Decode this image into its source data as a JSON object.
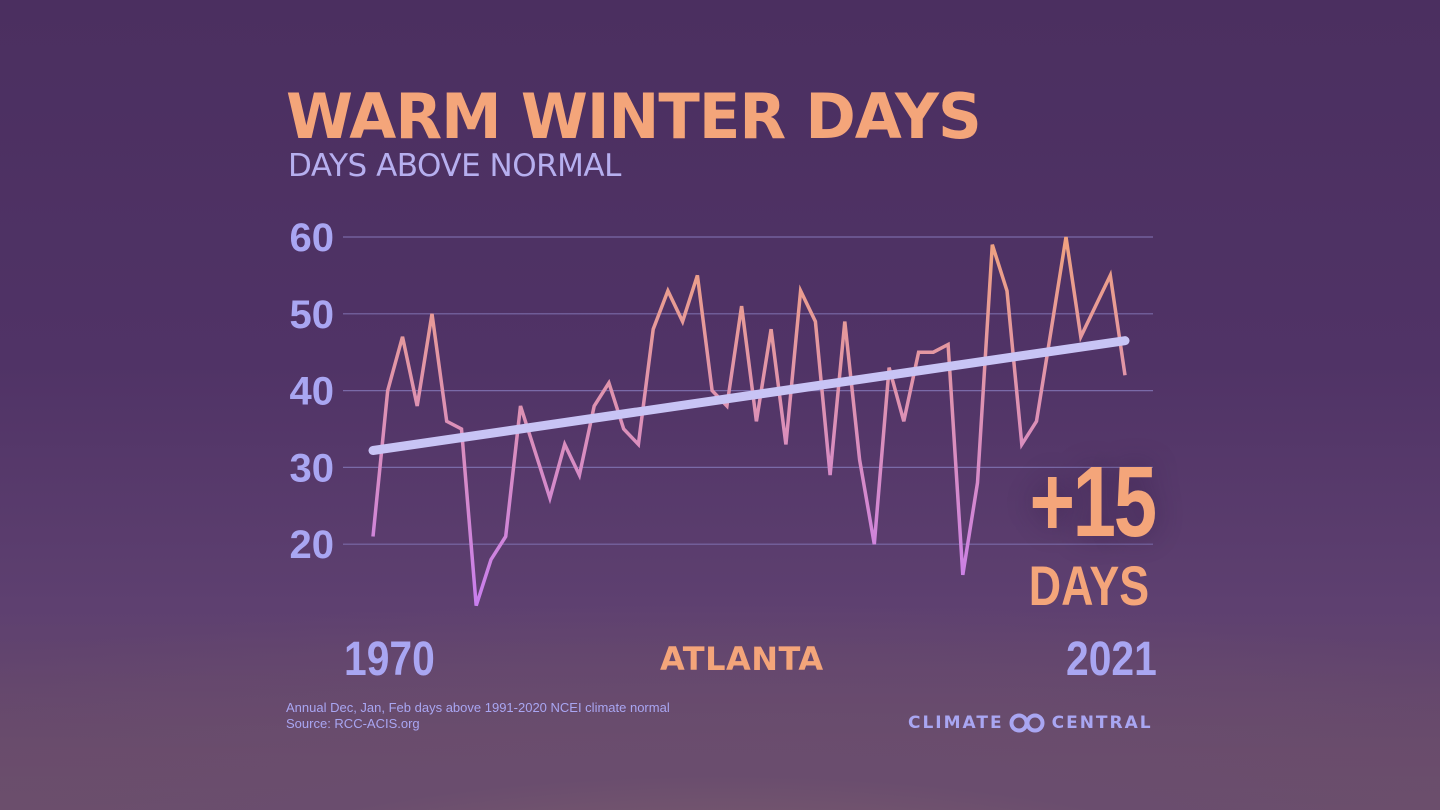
{
  "header": {
    "title": "WARM WINTER DAYS",
    "subtitle": "DAYS ABOVE NORMAL"
  },
  "callout": {
    "change": "+15",
    "unit": "DAYS"
  },
  "labels": {
    "start_year": "1970",
    "end_year": "2021",
    "city": "ATLANTA"
  },
  "footnote": {
    "line1": "Annual Dec, Jan, Feb days above 1991-2020 NCEI climate normal",
    "line2": "Source: RCC-ACIS.org"
  },
  "logo": {
    "left": "CLIMATE",
    "right": "CENTRAL",
    "icon": "linked-rings-icon"
  },
  "colors": {
    "accent": "#f4a57a",
    "label": "#a9a6f2",
    "trend": "#c8c4f5",
    "line_high": "#f0a27f",
    "line_low": "#c87ef0",
    "grid": "#7a6aa8"
  },
  "chart_data": {
    "type": "line",
    "title": "WARM WINTER DAYS",
    "ylabel": "DAYS ABOVE NORMAL",
    "x_start": 1970,
    "x_end": 2021,
    "ylim": [
      10,
      60
    ],
    "yticks": [
      20,
      30,
      40,
      50,
      60
    ],
    "grid": true,
    "series": [
      {
        "x": [
          1970,
          1971,
          1972,
          1973,
          1974,
          1975,
          1976,
          1977,
          1978,
          1979,
          1980,
          1981,
          1982,
          1983,
          1984,
          1985,
          1986,
          1987,
          1988,
          1989,
          1990,
          1991,
          1992,
          1993,
          1994,
          1995,
          1996,
          1997,
          1998,
          1999,
          2000,
          2001,
          2002,
          2003,
          2004,
          2005,
          2006,
          2007,
          2008,
          2009,
          2010,
          2011,
          2012,
          2013,
          2014,
          2015,
          2016,
          2017,
          2018,
          2019,
          2020,
          2021
        ],
        "values": [
          21,
          40,
          47,
          38,
          50,
          36,
          35,
          12,
          18,
          21,
          38,
          32,
          26,
          33,
          29,
          38,
          41,
          35,
          33,
          48,
          53,
          49,
          55,
          40,
          38,
          51,
          36,
          48,
          33,
          53,
          49,
          29,
          49,
          31,
          20,
          43,
          36,
          45,
          45,
          46,
          16,
          28,
          59,
          53,
          33,
          36,
          48,
          60,
          47,
          51,
          55,
          42
        ]
      },
      {
        "name": "trend",
        "x": [
          1970,
          2021
        ],
        "values": [
          32.2,
          46.5
        ]
      }
    ]
  }
}
